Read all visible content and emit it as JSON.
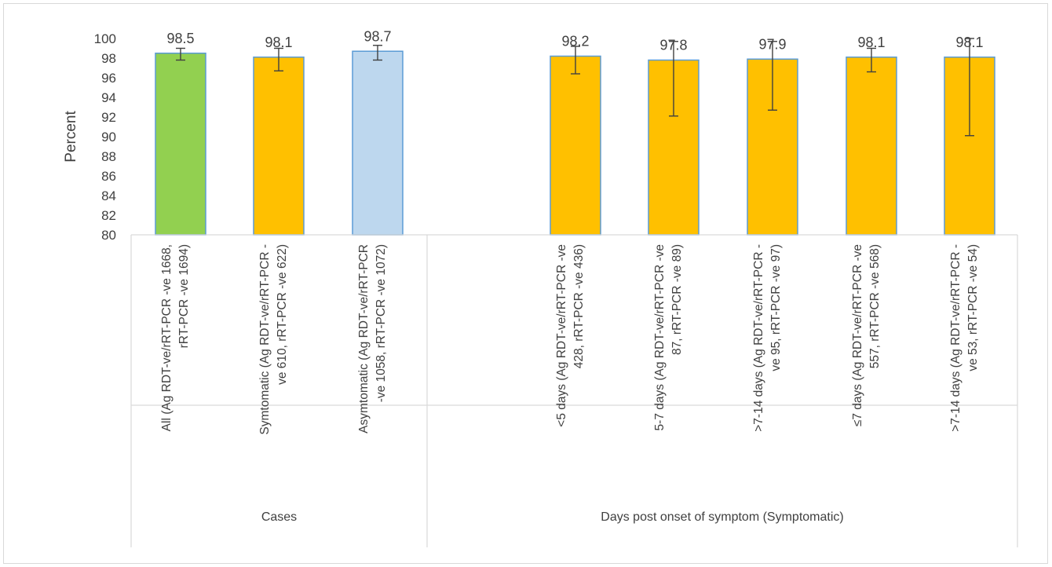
{
  "chart_data": {
    "type": "bar",
    "title": "",
    "xlabel": "",
    "ylabel": "Percent",
    "ylim": [
      80,
      100
    ],
    "yticks": [
      80,
      82,
      84,
      86,
      88,
      90,
      92,
      94,
      96,
      98,
      100
    ],
    "grid": false,
    "legend": "none",
    "groups": [
      {
        "label": "Cases",
        "categories": [
          0,
          1,
          2
        ]
      },
      {
        "label": "Days post onset of symptom (Symptomatic)",
        "categories": [
          3,
          4,
          5,
          6,
          7
        ]
      }
    ],
    "categories": [
      "All (Ag RDT-ve/rRT-PCR -ve 1668, rRT-PCR -ve 1694)",
      "Symtomatic (Ag RDT-ve/rRT-PCR -ve 610, rRT-PCR -ve 622)",
      "Asymtomatic (Ag RDT-ve/rRT-PCR -ve 1058, rRT-PCR -ve 1072)",
      "<5 days (Ag RDT-ve/rRT-PCR -ve 428, rRT-PCR -ve 436)",
      "5-7 days (Ag RDT-ve/rRT-PCR -ve 87, rRT-PCR -ve 89)",
      ">7-14 days (Ag RDT-ve/rRT-PCR -ve 95, rRT-PCR -ve 97)",
      "≤7 days (Ag RDT-ve/rRT-PCR -ve 557, rRT-PCR -ve 568)",
      ">7-14 days (Ag RDT-ve/rRT-PCR -ve 53, rRT-PCR -ve 54)"
    ],
    "category_label_lines": [
      [
        "All (Ag RDT-ve/rRT-PCR -ve 1668,",
        "rRT-PCR -ve 1694)"
      ],
      [
        "Symtomatic (Ag RDT-ve/rRT-PCR -",
        "ve 610, rRT-PCR -ve 622)"
      ],
      [
        "Asymtomatic (Ag RDT-ve/rRT-PCR",
        "-ve 1058, rRT-PCR -ve 1072)"
      ],
      [
        "<5 days (Ag RDT-ve/rRT-PCR -ve",
        "428, rRT-PCR -ve 436)"
      ],
      [
        "5-7 days (Ag RDT-ve/rRT-PCR -ve",
        "87, rRT-PCR -ve 89)"
      ],
      [
        ">7-14 days (Ag RDT-ve/rRT-PCR -",
        "ve 95, rRT-PCR -ve 97)"
      ],
      [
        "≤7 days (Ag RDT-ve/rRT-PCR -ve",
        "557, rRT-PCR -ve 568)"
      ],
      [
        ">7-14 days (Ag RDT-ve/rRT-PCR -",
        "ve 53, rRT-PCR -ve 54)"
      ]
    ],
    "values": [
      98.5,
      98.1,
      98.7,
      98.2,
      97.8,
      97.9,
      98.1,
      98.1
    ],
    "value_labels": [
      "98.5",
      "98.1",
      "98.7",
      "98.2",
      "97.8",
      "97.9",
      "98.1",
      "98.1"
    ],
    "error_low": [
      97.8,
      96.7,
      97.8,
      96.4,
      92.1,
      92.7,
      96.6,
      90.1
    ],
    "error_high": [
      99.0,
      99.0,
      99.3,
      99.2,
      99.7,
      99.7,
      99.0,
      100.0
    ],
    "colors": [
      "#92d050",
      "#ffc000",
      "#bdd7ee",
      "#ffc000",
      "#ffc000",
      "#ffc000",
      "#ffc000",
      "#ffc000"
    ],
    "bar_border": "#5b9bd5",
    "errorbar_color": "#404040",
    "axis_color": "#d9d9d9"
  }
}
